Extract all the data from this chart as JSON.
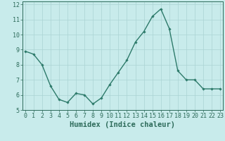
{
  "x": [
    0,
    1,
    2,
    3,
    4,
    5,
    6,
    7,
    8,
    9,
    10,
    11,
    12,
    13,
    14,
    15,
    16,
    17,
    18,
    19,
    20,
    21,
    22,
    23
  ],
  "y": [
    8.9,
    8.7,
    8.0,
    6.6,
    5.7,
    5.5,
    6.1,
    6.0,
    5.4,
    5.8,
    6.7,
    7.5,
    8.3,
    9.5,
    10.2,
    11.2,
    11.7,
    10.4,
    7.6,
    7.0,
    7.0,
    6.4,
    6.4,
    6.4
  ],
  "line_color": "#2d7a6a",
  "marker": "D",
  "marker_size": 1.8,
  "bg_color": "#c8ebeb",
  "grid_color": "#aad4d4",
  "axis_color": "#2d6b5a",
  "tick_color": "#2d6b5a",
  "xlabel": "Humidex (Indice chaleur)",
  "xlim": [
    -0.3,
    23.3
  ],
  "ylim": [
    5,
    12.2
  ],
  "yticks": [
    5,
    6,
    7,
    8,
    9,
    10,
    11,
    12
  ],
  "xticks": [
    0,
    1,
    2,
    3,
    4,
    5,
    6,
    7,
    8,
    9,
    10,
    11,
    12,
    13,
    14,
    15,
    16,
    17,
    18,
    19,
    20,
    21,
    22,
    23
  ],
  "linewidth": 1.0,
  "font_size": 6.0,
  "label_font_size": 7.5
}
